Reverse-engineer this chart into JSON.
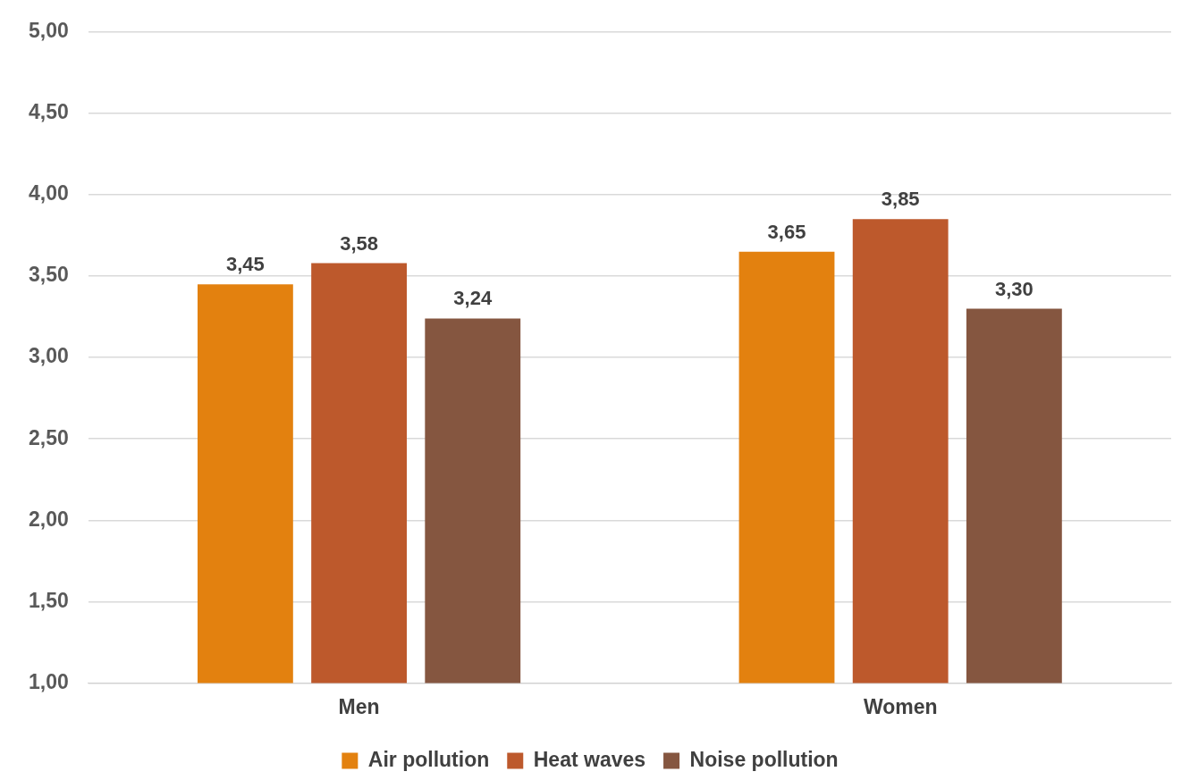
{
  "chart_data": {
    "type": "bar",
    "categories": [
      "Men",
      "Women"
    ],
    "series": [
      {
        "name": "Air pollution",
        "color": "#e3810f",
        "values": [
          3.45,
          3.65
        ],
        "value_labels": [
          "3,45",
          "3,65"
        ]
      },
      {
        "name": "Heat waves",
        "color": "#bd592c",
        "values": [
          3.58,
          3.85
        ],
        "value_labels": [
          "3,58",
          "3,85"
        ]
      },
      {
        "name": "Noise pollution",
        "color": "#855640",
        "values": [
          3.24,
          3.3
        ],
        "value_labels": [
          "3,24",
          "3,30"
        ]
      }
    ],
    "ylim": [
      1,
      5
    ],
    "yticks": [
      {
        "value": 1,
        "label": "1,00"
      },
      {
        "value": 1.5,
        "label": "1,50"
      },
      {
        "value": 2,
        "label": "2,00"
      },
      {
        "value": 2.5,
        "label": "2,50"
      },
      {
        "value": 3,
        "label": "3,00"
      },
      {
        "value": 3.5,
        "label": "3,50"
      },
      {
        "value": 4,
        "label": "4,00"
      },
      {
        "value": 4.5,
        "label": "4,50"
      },
      {
        "value": 5,
        "label": "5,00"
      }
    ],
    "grid": "y",
    "legend": "bottom"
  }
}
